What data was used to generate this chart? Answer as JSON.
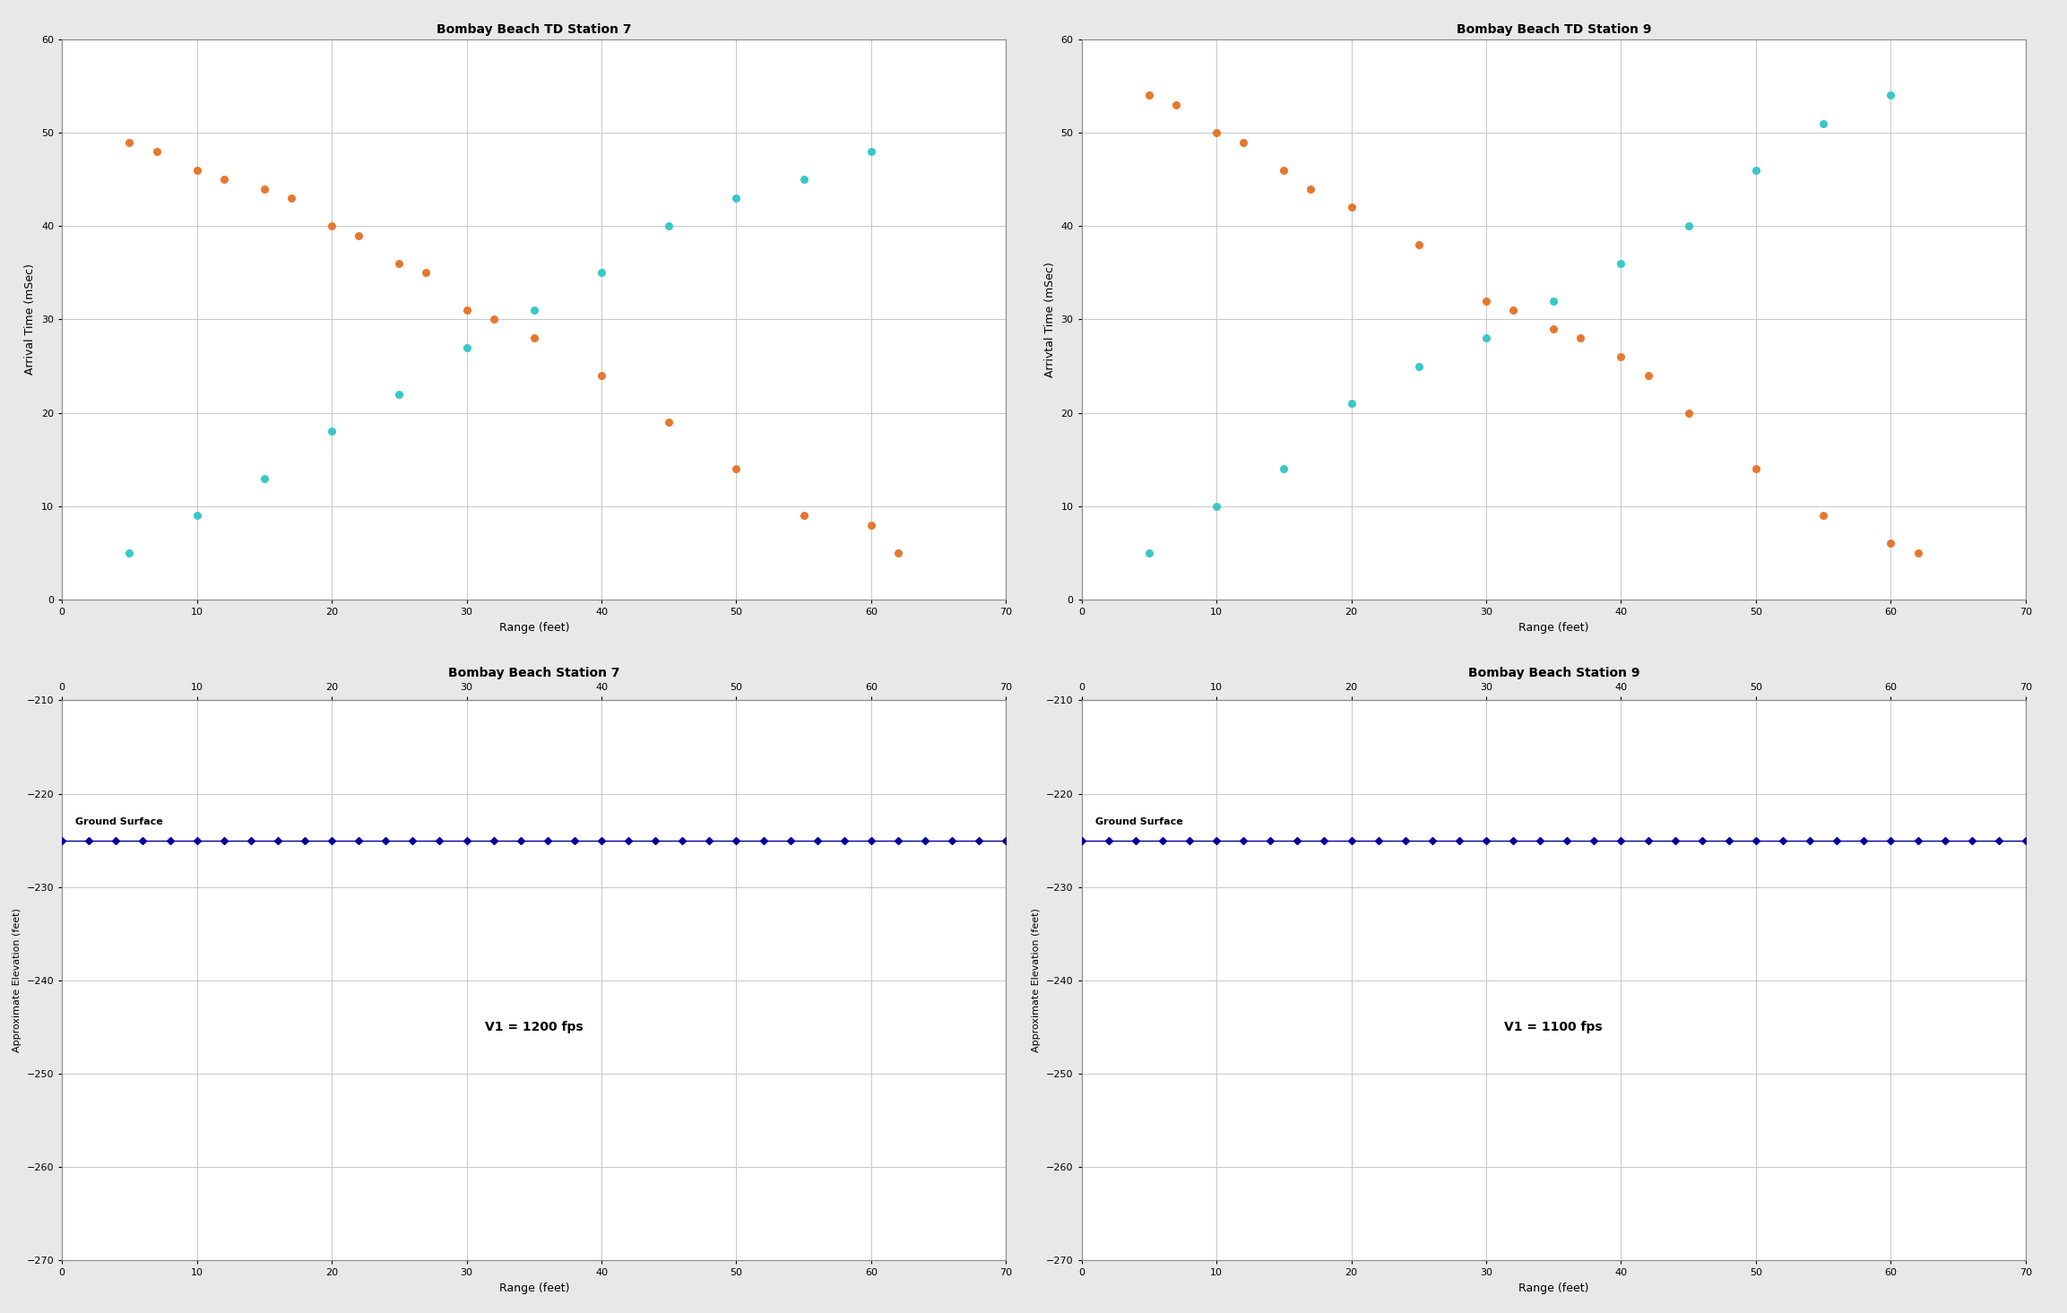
{
  "plot1": {
    "title": "Bombay Beach TD Station 7",
    "xlabel": "Range (feet)",
    "ylabel": "Arrival Time (mSec)",
    "xlim": [
      0,
      70
    ],
    "ylim": [
      0,
      60
    ],
    "xticks": [
      0,
      10,
      20,
      30,
      40,
      50,
      60,
      70
    ],
    "yticks": [
      0,
      10,
      20,
      30,
      40,
      50,
      60
    ],
    "orange_x": [
      5,
      7,
      10,
      12,
      15,
      17,
      20,
      22,
      25,
      27,
      30,
      32,
      35,
      40,
      45,
      50,
      55,
      60,
      62
    ],
    "orange_y": [
      49,
      48,
      46,
      45,
      44,
      43,
      40,
      39,
      36,
      35,
      31,
      30,
      28,
      24,
      19,
      14,
      9,
      8,
      5
    ],
    "cyan_x": [
      5,
      10,
      15,
      20,
      25,
      30,
      35,
      40,
      45,
      50,
      55,
      60
    ],
    "cyan_y": [
      5,
      9,
      13,
      18,
      22,
      27,
      31,
      35,
      40,
      43,
      45,
      48
    ],
    "orange_color": "#E8772E",
    "cyan_color": "#38C8C8"
  },
  "plot2": {
    "title": "Bombay Beach TD Station 9",
    "xlabel": "Range (feet)",
    "ylabel": "Arrivtal Time (mSec)",
    "xlim": [
      0,
      70
    ],
    "ylim": [
      0,
      60
    ],
    "xticks": [
      0,
      10,
      20,
      30,
      40,
      50,
      60,
      70
    ],
    "yticks": [
      0,
      10,
      20,
      30,
      40,
      50,
      60
    ],
    "orange_x": [
      5,
      7,
      10,
      12,
      15,
      17,
      20,
      25,
      30,
      32,
      35,
      37,
      40,
      42,
      45,
      50,
      55,
      60,
      62
    ],
    "orange_y": [
      54,
      53,
      50,
      49,
      46,
      44,
      42,
      38,
      32,
      31,
      29,
      28,
      26,
      24,
      20,
      14,
      9,
      6,
      5
    ],
    "cyan_x": [
      5,
      10,
      15,
      20,
      25,
      30,
      35,
      40,
      45,
      50,
      55,
      60
    ],
    "cyan_y": [
      5,
      10,
      14,
      21,
      25,
      28,
      32,
      36,
      40,
      46,
      51,
      54
    ],
    "orange_color": "#E8772E",
    "cyan_color": "#38C8C8"
  },
  "plot3": {
    "title": "Bombay Beach Station 7",
    "xlabel": "Range (feet)",
    "ylabel": "Approximate Elevation (feet)",
    "xlim": [
      0,
      70
    ],
    "ylim": [
      -270,
      -210
    ],
    "xticks": [
      0,
      10,
      20,
      30,
      40,
      50,
      60,
      70
    ],
    "yticks": [
      -270,
      -260,
      -250,
      -240,
      -230,
      -220,
      -210
    ],
    "line_x": [
      0,
      2,
      4,
      6,
      8,
      10,
      12,
      14,
      16,
      18,
      20,
      22,
      24,
      26,
      28,
      30,
      32,
      34,
      36,
      38,
      40,
      42,
      44,
      46,
      48,
      50,
      52,
      54,
      56,
      58,
      60,
      62,
      64,
      66,
      68,
      70
    ],
    "line_y": [
      -225,
      -225,
      -225,
      -225,
      -225,
      -225,
      -225,
      -225,
      -225,
      -225,
      -225,
      -225,
      -225,
      -225,
      -225,
      -225,
      -225,
      -225,
      -225,
      -225,
      -225,
      -225,
      -225,
      -225,
      -225,
      -225,
      -225,
      -225,
      -225,
      -225,
      -225,
      -225,
      -225,
      -225,
      -225,
      -225
    ],
    "surface_text": "Ground Surface",
    "annotation_text": "V1 = 1200 fps",
    "line_color": "#000099",
    "marker": "D"
  },
  "plot4": {
    "title": "Bombay Beach Station 9",
    "xlabel": "Range (feet)",
    "ylabel": "Approximate Elevation (feet)",
    "xlim": [
      0,
      70
    ],
    "ylim": [
      -270,
      -210
    ],
    "xticks": [
      0,
      10,
      20,
      30,
      40,
      50,
      60,
      70
    ],
    "yticks": [
      -270,
      -260,
      -250,
      -240,
      -230,
      -220,
      -210
    ],
    "line_x": [
      0,
      2,
      4,
      6,
      8,
      10,
      12,
      14,
      16,
      18,
      20,
      22,
      24,
      26,
      28,
      30,
      32,
      34,
      36,
      38,
      40,
      42,
      44,
      46,
      48,
      50,
      52,
      54,
      56,
      58,
      60,
      62,
      64,
      66,
      68,
      70
    ],
    "line_y": [
      -225,
      -225,
      -225,
      -225,
      -225,
      -225,
      -225,
      -225,
      -225,
      -225,
      -225,
      -225,
      -225,
      -225,
      -225,
      -225,
      -225,
      -225,
      -225,
      -225,
      -225,
      -225,
      -225,
      -225,
      -225,
      -225,
      -225,
      -225,
      -225,
      -225,
      -225,
      -225,
      -225,
      -225,
      -225,
      -225
    ],
    "surface_text": "Ground Surface",
    "annotation_text": "V1 = 1100 fps",
    "line_color": "#000099",
    "marker": "D"
  },
  "figure": {
    "bg_color": "#FFFFFF",
    "panel_bg": "#FFFFFF",
    "outer_bg": "#E8E8E8",
    "title_fontsize": 10,
    "label_fontsize": 9,
    "tick_fontsize": 8,
    "grid_color": "#C8C8C8",
    "border_color": "#888888"
  }
}
